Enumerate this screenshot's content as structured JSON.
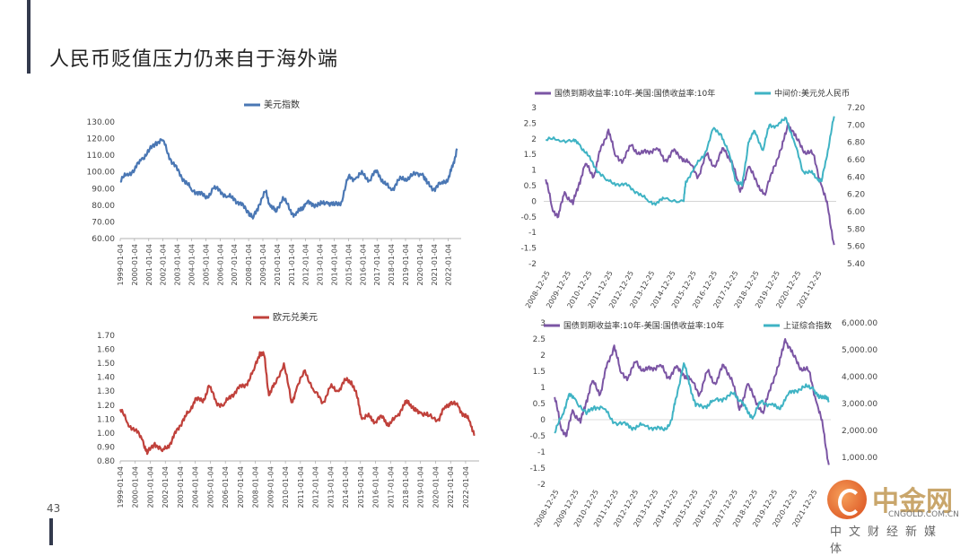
{
  "slide": {
    "title": "人民币贬值压力仍来自于海外端",
    "page_number": "43"
  },
  "logo": {
    "name": "中金网",
    "url": "CNGOLD.COM.CN",
    "subtitle": "中文财经新媒体"
  },
  "colors": {
    "blue": "#4a77b4",
    "red": "#c0413b",
    "purple": "#7b55a4",
    "teal": "#3fb3c4",
    "accent": "#333a4d"
  },
  "chart_data": [
    {
      "type": "line",
      "legend": [
        "美元指数"
      ],
      "legend_position": "top",
      "x_ticks": [
        "1999-01-04",
        "2000-01-04",
        "2001-01-04",
        "2002-01-04",
        "2003-01-04",
        "2004-01-04",
        "2005-01-04",
        "2006-01-04",
        "2007-01-04",
        "2008-01-04",
        "2009-01-04",
        "2010-01-04",
        "2011-01-04",
        "2012-01-04",
        "2013-01-04",
        "2014-01-04",
        "2015-01-04",
        "2016-01-04",
        "2017-01-04",
        "2018-01-04",
        "2019-01-04",
        "2020-01-04",
        "2021-01-04",
        "2022-01-04"
      ],
      "y_ticks": [
        "60.00",
        "70.00",
        "80.00",
        "90.00",
        "100.00",
        "110.00",
        "120.00",
        "130.00"
      ],
      "ylim": [
        60,
        130
      ],
      "grid": false,
      "series": [
        {
          "name": "美元指数",
          "color": "#4a77b4",
          "x": [
            1999.0,
            1999.5,
            2000.0,
            2000.5,
            2001.0,
            2001.5,
            2002.0,
            2002.5,
            2003.0,
            2003.5,
            2004.0,
            2004.5,
            2005.0,
            2005.5,
            2006.0,
            2006.5,
            2007.0,
            2007.5,
            2008.0,
            2008.3,
            2008.7,
            2009.2,
            2009.5,
            2009.9,
            2010.4,
            2010.9,
            2011.3,
            2011.7,
            2012.0,
            2012.5,
            2013.0,
            2013.5,
            2014.0,
            2014.5,
            2015.0,
            2015.5,
            2016.0,
            2016.5,
            2017.0,
            2017.5,
            2018.0,
            2018.5,
            2019.0,
            2019.5,
            2020.2,
            2020.5,
            2021.0,
            2021.5,
            2022.0,
            2022.3,
            2022.6
          ],
          "values": [
            94,
            99,
            101,
            108,
            112,
            118,
            119,
            108,
            101,
            95,
            89,
            88,
            84,
            90,
            89,
            85,
            84,
            80,
            76,
            72,
            80,
            88,
            80,
            76,
            85,
            77,
            74,
            78,
            81,
            81,
            80,
            82,
            80,
            82,
            97,
            96,
            99,
            95,
            101,
            93,
            89,
            95,
            96,
            98,
            99,
            93,
            90,
            93,
            96,
            103,
            114
          ]
        }
      ]
    },
    {
      "type": "line",
      "legend": [
        "国债到期收益率:10年-美国:国债收益率:10年",
        "中间价:美元兑人民币"
      ],
      "legend_position": "top",
      "x_ticks": [
        "2008-12-25",
        "2009-12-25",
        "2010-12-25",
        "2011-12-25",
        "2012-12-25",
        "2013-12-25",
        "2014-12-25",
        "2015-12-25",
        "2016-12-25",
        "2017-12-25",
        "2018-12-25",
        "2019-12-25",
        "2020-12-25",
        "2021-12-25"
      ],
      "y_left_ticks": [
        "-2",
        "-1.5",
        "-1",
        "-0.5",
        "0",
        "0.5",
        "1",
        "1.5",
        "2",
        "2.5",
        "3"
      ],
      "y_right_ticks": [
        "5.40",
        "5.60",
        "5.80",
        "6.00",
        "6.20",
        "6.40",
        "6.60",
        "6.80",
        "7.00",
        "7.20"
      ],
      "ylim_left": [
        -2,
        3
      ],
      "ylim_right": [
        5.4,
        7.2
      ],
      "grid": false,
      "series": [
        {
          "name": "国债到期收益率:10年-美国:国债收益率:10年",
          "color": "#7b55a4",
          "axis": "left",
          "x": [
            2008.9,
            2009.2,
            2009.5,
            2009.8,
            2010.2,
            2010.5,
            2010.8,
            2011.2,
            2011.5,
            2011.9,
            2012.2,
            2012.6,
            2013.0,
            2013.4,
            2013.8,
            2014.2,
            2014.6,
            2015.0,
            2015.4,
            2015.8,
            2016.2,
            2016.6,
            2017.0,
            2017.4,
            2017.8,
            2018.2,
            2018.6,
            2019.0,
            2019.4,
            2019.8,
            2020.2,
            2020.5,
            2020.9,
            2021.3,
            2021.7,
            2022.1,
            2022.4,
            2022.7
          ],
          "values": [
            0.7,
            -0.2,
            -0.5,
            0.3,
            -0.1,
            0.6,
            1.2,
            0.8,
            1.6,
            2.3,
            1.5,
            1.3,
            1.8,
            1.5,
            1.6,
            1.7,
            1.3,
            1.6,
            1.4,
            1.2,
            0.8,
            1.5,
            1.1,
            1.7,
            1.3,
            0.3,
            1.1,
            0.6,
            0.2,
            1.1,
            1.7,
            2.5,
            2.0,
            1.6,
            1.5,
            0.5,
            -0.2,
            -1.4
          ]
        },
        {
          "name": "中间价:美元兑人民币",
          "color": "#3fb3c4",
          "axis": "right",
          "x": [
            2008.9,
            2009.5,
            2010.2,
            2010.5,
            2010.9,
            2011.3,
            2011.8,
            2012.3,
            2012.8,
            2013.3,
            2013.8,
            2014.2,
            2014.6,
            2015.5,
            2015.6,
            2016.0,
            2016.5,
            2016.9,
            2017.3,
            2017.7,
            2018.0,
            2018.3,
            2018.6,
            2018.9,
            2019.3,
            2019.6,
            2020.0,
            2020.4,
            2020.8,
            2021.2,
            2021.6,
            2021.9,
            2022.1,
            2022.4,
            2022.7
          ],
          "values": [
            6.83,
            6.83,
            6.82,
            6.78,
            6.65,
            6.5,
            6.36,
            6.32,
            6.3,
            6.22,
            6.12,
            6.1,
            6.15,
            6.12,
            6.35,
            6.5,
            6.66,
            6.95,
            6.89,
            6.65,
            6.35,
            6.3,
            6.8,
            6.93,
            6.71,
            7.0,
            6.99,
            7.08,
            6.8,
            6.47,
            6.45,
            6.38,
            6.35,
            6.71,
            7.1
          ]
        }
      ]
    },
    {
      "type": "line",
      "legend": [
        "欧元兑美元"
      ],
      "legend_position": "top",
      "x_ticks": [
        "1999-01-04",
        "2000-01-04",
        "2001-01-04",
        "2002-01-04",
        "2003-01-04",
        "2004-01-04",
        "2005-01-04",
        "2006-01-04",
        "2007-01-04",
        "2008-01-04",
        "2009-01-04",
        "2010-01-04",
        "2011-01-04",
        "2012-01-04",
        "2013-01-04",
        "2014-01-04",
        "2015-01-04",
        "2016-01-04",
        "2017-01-04",
        "2018-01-04",
        "2019-01-04",
        "2020-01-04",
        "2021-01-04",
        "2022-01-04"
      ],
      "y_ticks": [
        "0.80",
        "0.90",
        "1.00",
        "1.10",
        "1.20",
        "1.30",
        "1.40",
        "1.50",
        "1.60",
        "1.70"
      ],
      "ylim": [
        0.8,
        1.7
      ],
      "grid": false,
      "series": [
        {
          "name": "欧元兑美元",
          "color": "#c0413b",
          "x": [
            1999.0,
            1999.5,
            2000.0,
            2000.5,
            2000.8,
            2001.3,
            2001.8,
            2002.3,
            2002.7,
            2003.2,
            2003.6,
            2004.0,
            2004.5,
            2004.9,
            2005.4,
            2005.9,
            2006.4,
            2006.9,
            2007.4,
            2007.9,
            2008.3,
            2008.6,
            2008.9,
            2009.3,
            2009.9,
            2010.4,
            2010.7,
            2011.3,
            2011.9,
            2012.5,
            2013.0,
            2013.5,
            2014.0,
            2014.4,
            2014.8,
            2015.1,
            2015.6,
            2016.0,
            2016.5,
            2016.9,
            2017.4,
            2017.9,
            2018.2,
            2018.6,
            2019.0,
            2019.5,
            2020.2,
            2020.6,
            2021.0,
            2021.5,
            2021.9,
            2022.3,
            2022.6
          ],
          "values": [
            1.17,
            1.07,
            1.02,
            0.95,
            0.85,
            0.93,
            0.87,
            0.92,
            1.0,
            1.1,
            1.15,
            1.25,
            1.22,
            1.34,
            1.22,
            1.2,
            1.27,
            1.32,
            1.35,
            1.45,
            1.58,
            1.55,
            1.27,
            1.35,
            1.5,
            1.22,
            1.3,
            1.45,
            1.3,
            1.22,
            1.33,
            1.3,
            1.38,
            1.37,
            1.25,
            1.1,
            1.12,
            1.08,
            1.12,
            1.05,
            1.12,
            1.2,
            1.23,
            1.16,
            1.15,
            1.12,
            1.1,
            1.18,
            1.22,
            1.19,
            1.13,
            1.08,
            0.99
          ]
        }
      ]
    },
    {
      "type": "line",
      "legend": [
        "国债到期收益率:10年-美国:国债收益率:10年",
        "上证综合指数"
      ],
      "legend_position": "top",
      "x_ticks": [
        "2008-12-25",
        "2009-12-25",
        "2010-12-25",
        "2011-12-25",
        "2012-12-25",
        "2013-12-25",
        "2014-12-25",
        "2015-12-25",
        "2016-12-25",
        "2017-12-25",
        "2018-12-25",
        "2019-12-25",
        "2020-12-25",
        "2021-12-25"
      ],
      "y_left_ticks": [
        "-2",
        "-1.5",
        "-1",
        "-0.5",
        "0",
        "0.5",
        "1",
        "1.5",
        "2",
        "2.5",
        "3"
      ],
      "y_right_ticks": [
        "1,000.00",
        "2,000.00",
        "3,000.00",
        "4,000.00",
        "5,000.00",
        "6,000.00"
      ],
      "ylim_left": [
        -2,
        3
      ],
      "ylim_right": [
        0,
        6000
      ],
      "grid": false,
      "series": [
        {
          "name": "国债到期收益率:10年-美国:国债收益率:10年",
          "color": "#7b55a4",
          "axis": "left",
          "x": [
            2008.9,
            2009.2,
            2009.5,
            2009.8,
            2010.2,
            2010.5,
            2010.8,
            2011.2,
            2011.5,
            2011.9,
            2012.2,
            2012.6,
            2013.0,
            2013.4,
            2013.8,
            2014.2,
            2014.6,
            2015.0,
            2015.4,
            2015.8,
            2016.2,
            2016.6,
            2017.0,
            2017.4,
            2017.8,
            2018.2,
            2018.6,
            2019.0,
            2019.4,
            2019.8,
            2020.2,
            2020.5,
            2020.9,
            2021.3,
            2021.7,
            2022.1,
            2022.4,
            2022.7
          ],
          "values": [
            0.7,
            -0.2,
            -0.5,
            0.3,
            -0.1,
            0.6,
            1.2,
            0.8,
            1.6,
            2.3,
            1.5,
            1.3,
            1.8,
            1.5,
            1.6,
            1.7,
            1.3,
            1.6,
            1.4,
            1.2,
            0.8,
            1.5,
            1.1,
            1.7,
            1.3,
            0.3,
            1.1,
            0.6,
            0.2,
            1.1,
            1.7,
            2.5,
            2.0,
            1.6,
            1.5,
            0.5,
            -0.2,
            -1.4
          ]
        },
        {
          "name": "上证综合指数",
          "color": "#3fb3c4",
          "axis": "right",
          "x": [
            2008.9,
            2009.3,
            2009.6,
            2009.9,
            2010.5,
            2010.9,
            2011.4,
            2011.9,
            2012.5,
            2012.9,
            2013.4,
            2013.9,
            2014.4,
            2014.8,
            2015.0,
            2015.4,
            2015.7,
            2016.0,
            2016.5,
            2016.9,
            2017.4,
            2017.9,
            2018.3,
            2018.6,
            2018.9,
            2019.3,
            2019.8,
            2020.2,
            2020.6,
            2021.0,
            2021.5,
            2021.9,
            2022.2,
            2022.5,
            2022.7
          ],
          "values": [
            1900,
            2600,
            3300,
            3200,
            2600,
            2900,
            2800,
            2300,
            2200,
            2100,
            2200,
            2100,
            2000,
            2400,
            3200,
            4500,
            3700,
            2900,
            2900,
            3100,
            3200,
            3350,
            3100,
            2700,
            2500,
            3100,
            2950,
            2800,
            3300,
            3500,
            3600,
            3600,
            3200,
            3300,
            3050
          ]
        }
      ]
    }
  ]
}
